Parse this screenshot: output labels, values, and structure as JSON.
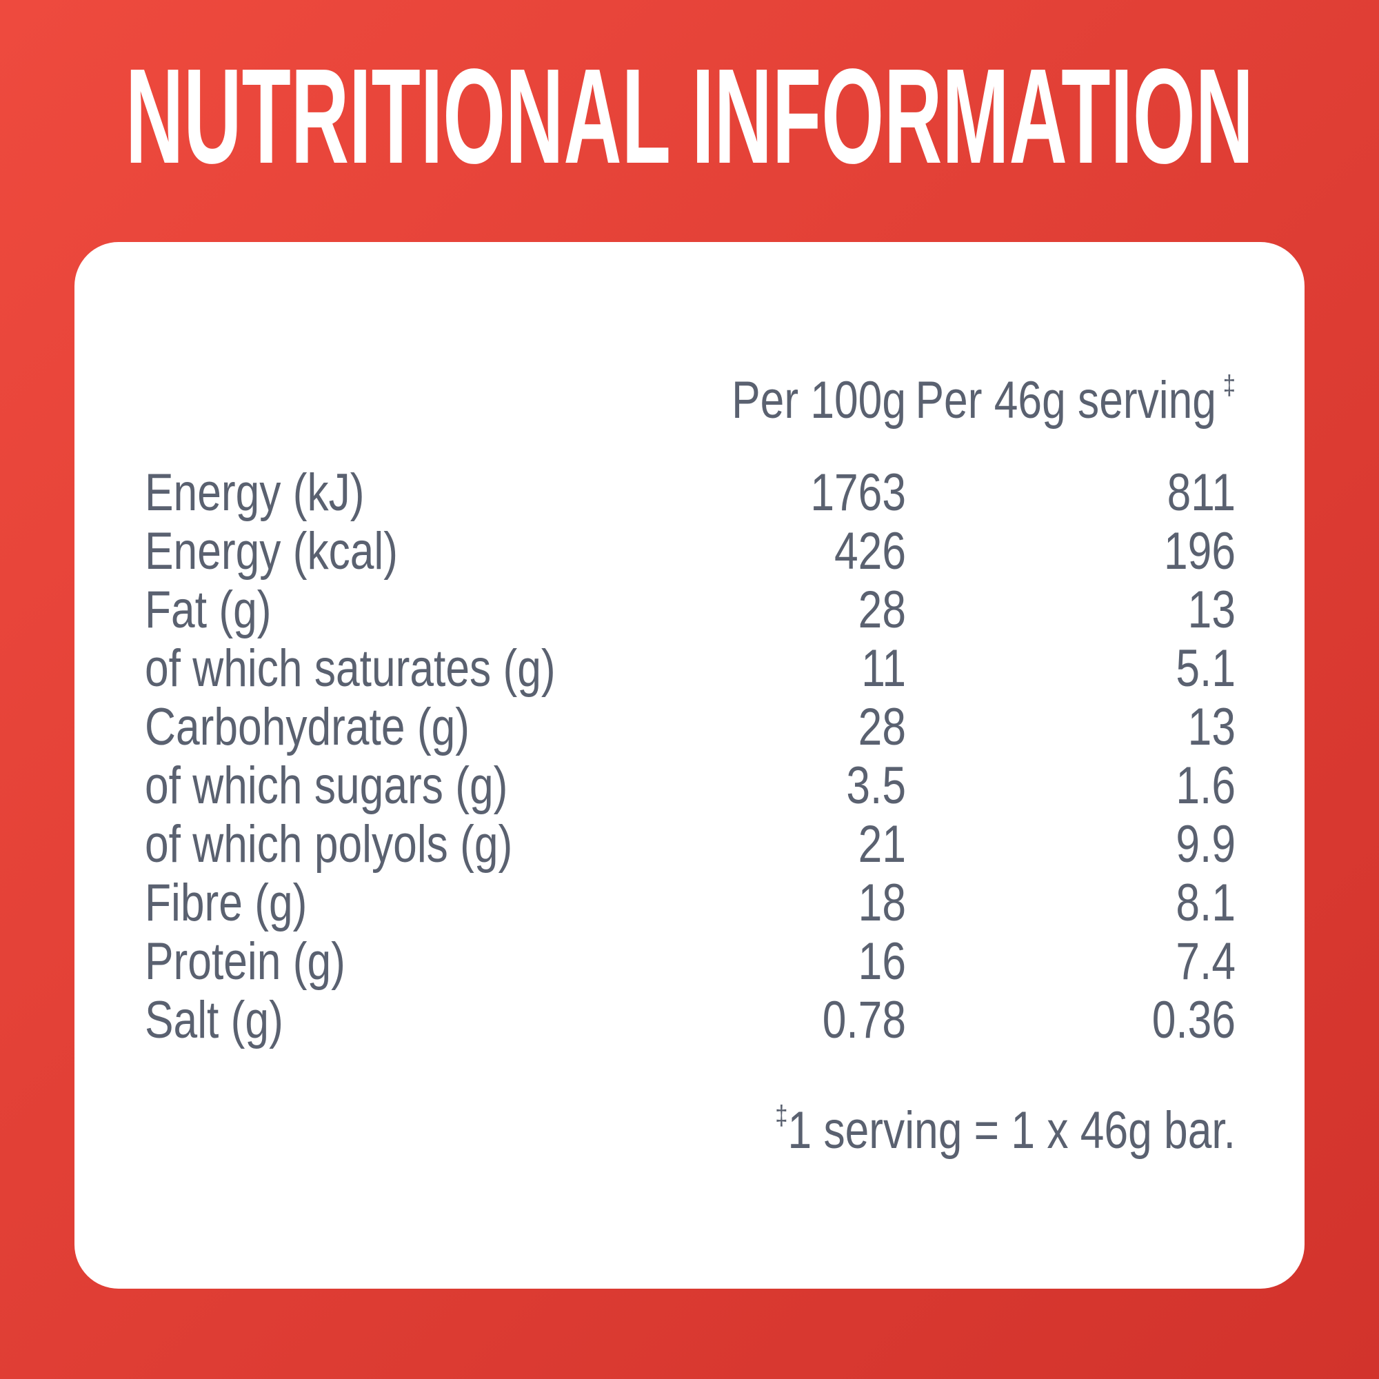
{
  "header": {
    "title": "NUTRITIONAL INFORMATION"
  },
  "table": {
    "columns": [
      {
        "label": "Per 100g"
      },
      {
        "label": "Per 46g serving",
        "mark": "‡"
      }
    ],
    "rows": [
      [
        "Energy (kJ)",
        "1763",
        "811"
      ],
      [
        "Energy (kcal)",
        "426",
        "196"
      ],
      [
        "Fat (g)",
        "28",
        "13"
      ],
      [
        "of which saturates (g)",
        "11",
        "5.1"
      ],
      [
        "Carbohydrate (g)",
        "28",
        "13"
      ],
      [
        "of which sugars (g)",
        "3.5",
        "1.6"
      ],
      [
        "of which polyols (g)",
        "21",
        "9.9"
      ],
      [
        "Fibre (g)",
        "18",
        "8.1"
      ],
      [
        "Protein (g)",
        "16",
        "7.4"
      ],
      [
        "Salt (g)",
        "0.78",
        "0.36"
      ]
    ]
  },
  "footnote": {
    "mark": "‡",
    "text": "1 serving = 1 x 46g bar."
  }
}
